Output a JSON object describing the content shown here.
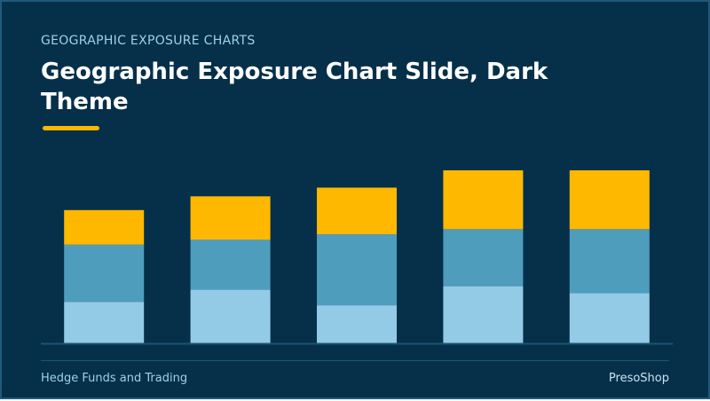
{
  "header": {
    "eyebrow": "GEOGRAPHIC EXPOSURE CHARTS",
    "title": "Geographic Exposure Chart Slide, Dark Theme"
  },
  "footer": {
    "left": "Hedge Funds and Trading",
    "right": "PresoShop"
  },
  "colors": {
    "background": "#06304a",
    "accent": "#ffb800",
    "series_bottom": "#93cbe7",
    "series_middle": "#4f9dbd",
    "series_top": "#ffb800",
    "baseline": "#1c5573"
  },
  "chart_data": {
    "type": "bar",
    "stacked": true,
    "categories": [
      "",
      "",
      "",
      "",
      ""
    ],
    "series": [
      {
        "values": [
          24,
          31,
          22,
          33,
          29
        ],
        "color": "#93cbe7"
      },
      {
        "values": [
          33,
          29,
          41,
          33,
          37
        ],
        "color": "#4f9dbd"
      },
      {
        "values": [
          20,
          25,
          27,
          34,
          34
        ],
        "color": "#ffb800"
      }
    ],
    "ylim": [
      0,
      100
    ],
    "grid": false,
    "legend": "none",
    "title": "",
    "xlabel": "",
    "ylabel": ""
  }
}
